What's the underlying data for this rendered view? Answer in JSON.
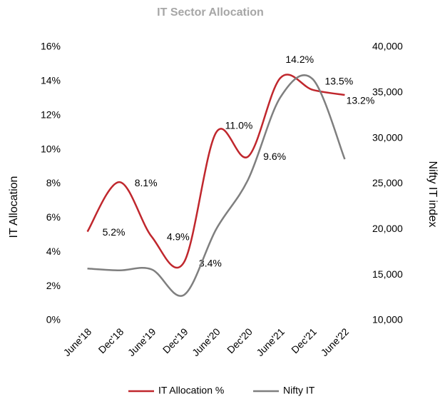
{
  "chart_data": {
    "type": "line",
    "title": "IT Sector Allocation",
    "categories": [
      "June'18",
      "Dec'18",
      "June'19",
      "Dec'19",
      "June'20",
      "Dec'20",
      "June'21",
      "Dec'21",
      "June'22"
    ],
    "series": [
      {
        "name": "IT Allocation %",
        "color": "#c0272d",
        "axis": "y",
        "values": [
          5.2,
          8.1,
          4.9,
          3.4,
          11.0,
          9.6,
          14.2,
          13.5,
          13.2
        ],
        "value_labels": [
          "5.2%",
          "8.1%",
          "4.9%",
          "3.4%",
          "11.0%",
          "9.6%",
          "14.2%",
          "13.5%",
          "13.2%"
        ]
      },
      {
        "name": "Nifty IT",
        "color": "#7f7f7f",
        "axis": "y2",
        "values": [
          15700,
          15500,
          15600,
          12800,
          20000,
          25500,
          34500,
          36500,
          27700
        ]
      }
    ],
    "ylabel": "IT Allocation",
    "y2label": "Nifty IT index",
    "ylim": [
      0,
      16
    ],
    "yticks": [
      {
        "value": 0,
        "label": "0%"
      },
      {
        "value": 2,
        "label": "2%"
      },
      {
        "value": 4,
        "label": "4%"
      },
      {
        "value": 6,
        "label": "6%"
      },
      {
        "value": 8,
        "label": "8%"
      },
      {
        "value": 10,
        "label": "10%"
      },
      {
        "value": 12,
        "label": "12%"
      },
      {
        "value": 14,
        "label": "14%"
      },
      {
        "value": 16,
        "label": "16%"
      }
    ],
    "y2lim": [
      10000,
      40000
    ],
    "y2ticks": [
      {
        "value": 10000,
        "label": "10,000"
      },
      {
        "value": 15000,
        "label": "15,000"
      },
      {
        "value": 20000,
        "label": "20,000"
      },
      {
        "value": 25000,
        "label": "25,000"
      },
      {
        "value": 30000,
        "label": "30,000"
      },
      {
        "value": 35000,
        "label": "35,000"
      },
      {
        "value": 40000,
        "label": "40,000"
      }
    ],
    "legend": "bottom",
    "grid": false
  }
}
